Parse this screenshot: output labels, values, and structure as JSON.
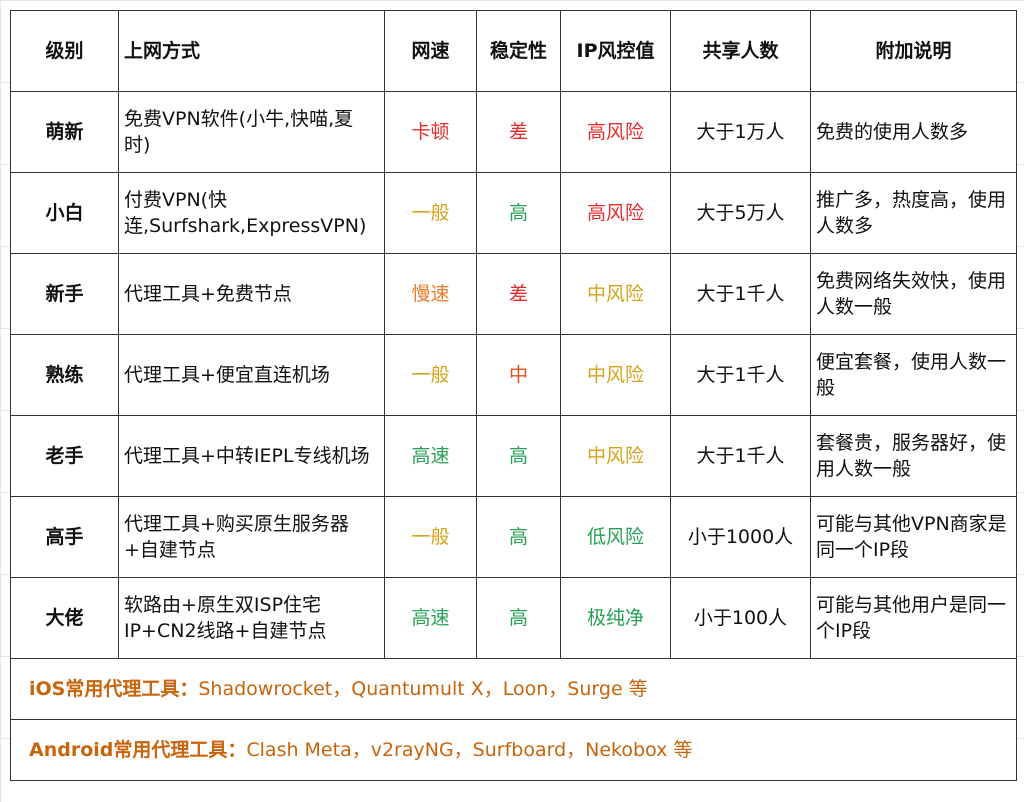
{
  "colors": {
    "red": "#e52b2b",
    "yellow": "#d6a21a",
    "orange": "#ec7a26",
    "green": "#27a055",
    "midred": "#e2501e",
    "footer": "#c8640c"
  },
  "headers": [
    "级别",
    "上网方式",
    "网速",
    "稳定性",
    "IP风控值",
    "共享人数",
    "附加说明"
  ],
  "rows": [
    {
      "level": "萌新",
      "method": "免费VPN软件(小牛,快喵,夏时)",
      "speed": "卡顿",
      "speed_color": "red",
      "stability": "差",
      "stability_color": "red",
      "risk": "高风险",
      "risk_color": "red",
      "share": "大于1万人",
      "note": "免费的使用人数多"
    },
    {
      "level": "小白",
      "method": "付费VPN(快连,Surfshark,ExpressVPN)",
      "speed": "一般",
      "speed_color": "yellow",
      "stability": "高",
      "stability_color": "green",
      "risk": "高风险",
      "risk_color": "red",
      "share": "大于5万人",
      "note": "推广多，热度高，使用人数多"
    },
    {
      "level": "新手",
      "method": "代理工具+免费节点",
      "speed": "慢速",
      "speed_color": "orange",
      "stability": "差",
      "stability_color": "red",
      "risk": "中风险",
      "risk_color": "yellow",
      "share": "大于1千人",
      "note": "免费网络失效快，使用人数一般"
    },
    {
      "level": "熟练",
      "method": "代理工具+便宜直连机场",
      "speed": "一般",
      "speed_color": "yellow",
      "stability": "中",
      "stability_color": "midred",
      "risk": "中风险",
      "risk_color": "yellow",
      "share": "大于1千人",
      "note": "便宜套餐，使用人数一般"
    },
    {
      "level": "老手",
      "method": "代理工具+中转IEPL专线机场",
      "speed": "高速",
      "speed_color": "green",
      "stability": "高",
      "stability_color": "green",
      "risk": "中风险",
      "risk_color": "yellow",
      "share": "大于1千人",
      "note": "套餐贵，服务器好，使用人数一般"
    },
    {
      "level": "高手",
      "method": "代理工具+购买原生服务器+自建节点",
      "speed": "一般",
      "speed_color": "yellow",
      "stability": "高",
      "stability_color": "green",
      "risk": "低风险",
      "risk_color": "green",
      "share": "小于1000人",
      "note": "可能与其他VPN商家是同一个IP段"
    },
    {
      "level": "大佬",
      "method": "软路由+原生双ISP住宅IP+CN2线路+自建节点",
      "speed": "高速",
      "speed_color": "green",
      "stability": "高",
      "stability_color": "green",
      "risk": "极纯净",
      "risk_color": "green",
      "share": "小于100人",
      "note": "可能与其他用户是同一个IP段"
    }
  ],
  "footer": [
    {
      "label": "iOS常用代理工具：",
      "text": "Shadowrocket，Quantumult X，Loon，Surge 等"
    },
    {
      "label": "Android常用代理工具：",
      "text": "Clash Meta，v2rayNG，Surfboard，Nekobox 等"
    }
  ]
}
